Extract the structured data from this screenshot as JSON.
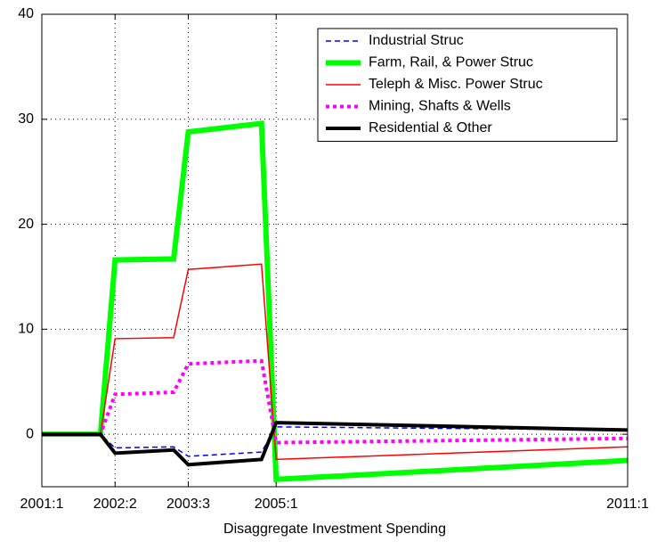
{
  "chart_data": {
    "type": "line",
    "xlabel": "Disaggregate Investment Spending",
    "x": [
      0,
      4,
      5,
      9,
      10,
      15,
      16,
      40
    ],
    "xlim": [
      0,
      40
    ],
    "xticks": [
      {
        "value": 0,
        "label": "2001:1"
      },
      {
        "value": 5,
        "label": "2002:2"
      },
      {
        "value": 10,
        "label": "2003:3"
      },
      {
        "value": 16,
        "label": "2005:1"
      },
      {
        "value": 40,
        "label": "2011:1"
      }
    ],
    "ylim": [
      -5,
      40
    ],
    "yticks": [
      0,
      10,
      20,
      30,
      40
    ],
    "grid": true,
    "legend": "upper right",
    "series": [
      {
        "name": "Industrial Struc",
        "color": "#0000ff",
        "linestyle": "--",
        "linewidth": 1.5,
        "values": [
          0,
          0,
          -1.3,
          -1.2,
          -2.1,
          -1.7,
          0.7,
          0.4
        ]
      },
      {
        "name": "Farm, Rail, & Power Struc",
        "color": "#00ff00",
        "linestyle": "-",
        "linewidth": 6,
        "values": [
          0,
          0,
          16.6,
          16.7,
          28.8,
          29.6,
          -4.3,
          -2.5
        ]
      },
      {
        "name": "Teleph & Misc. Power Struc",
        "color": "#ff0000",
        "linestyle": "-",
        "linewidth": 1.5,
        "values": [
          0,
          0,
          9.1,
          9.2,
          15.7,
          16.2,
          -2.4,
          -1.2
        ]
      },
      {
        "name": "Mining, Shafts & Wells",
        "color": "#ff00ff",
        "linestyle": ":",
        "linewidth": 4,
        "values": [
          0,
          0,
          3.8,
          4.0,
          6.7,
          7.0,
          -0.8,
          -0.4
        ]
      },
      {
        "name": "Residential & Other",
        "color": "#000000",
        "linestyle": "-",
        "linewidth": 4,
        "values": [
          0,
          0,
          -1.8,
          -1.5,
          -2.9,
          -2.4,
          1.1,
          0.4
        ]
      }
    ]
  }
}
